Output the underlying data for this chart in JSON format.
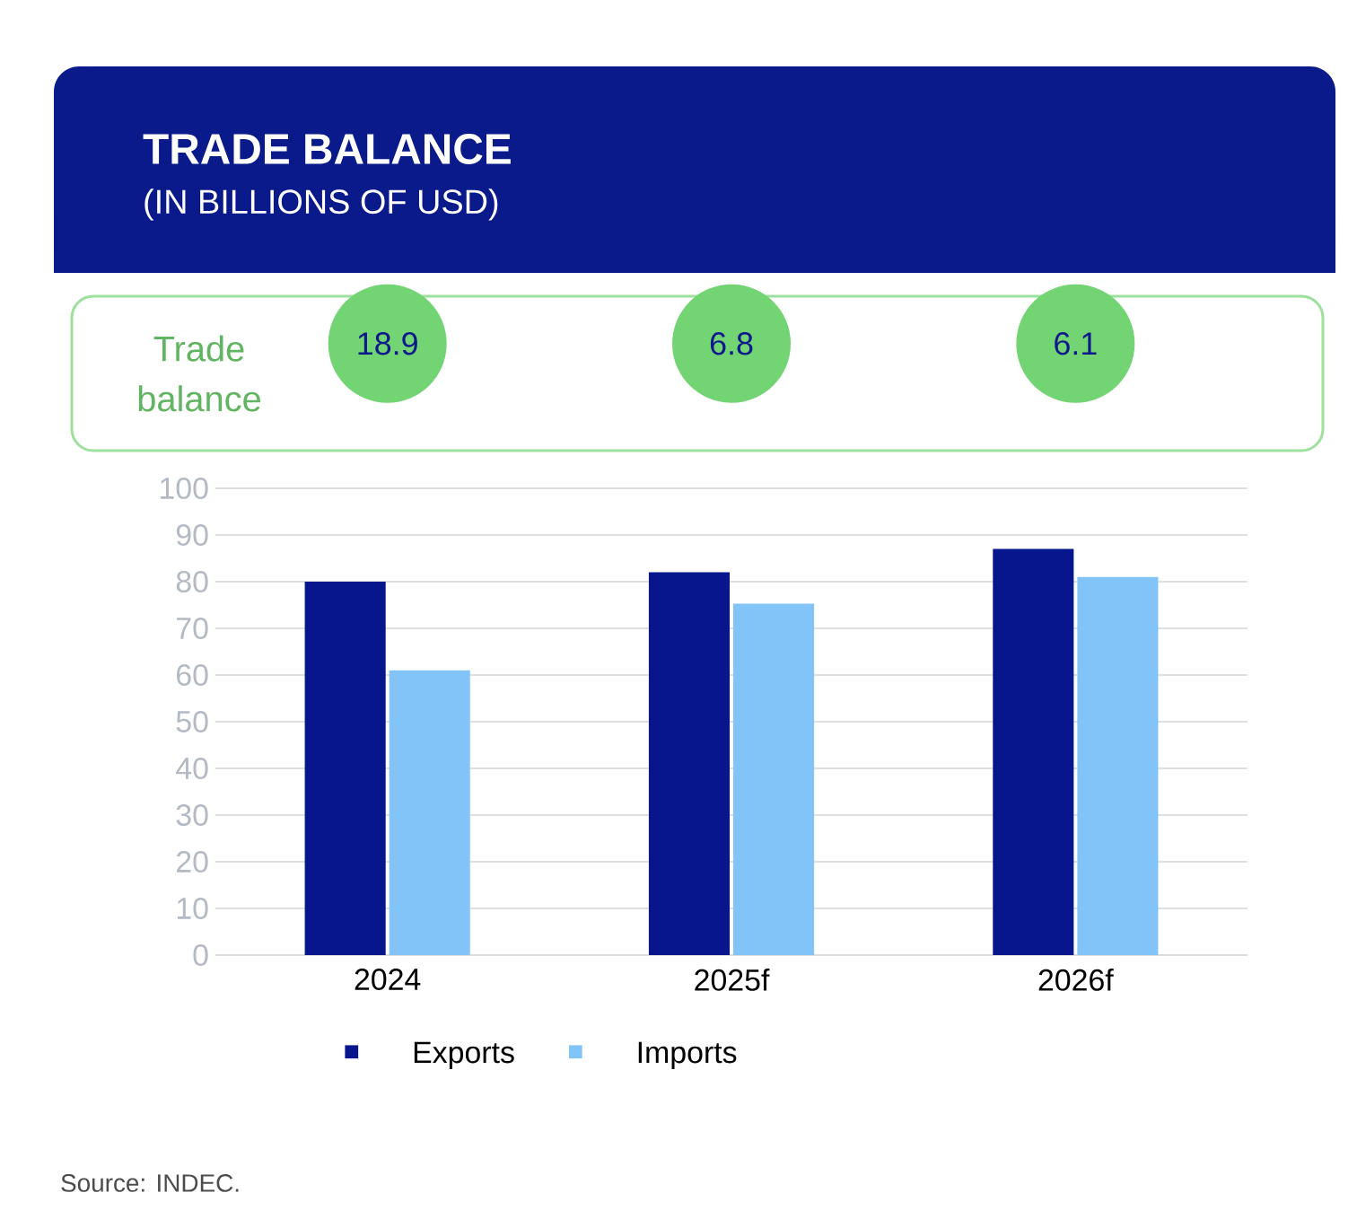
{
  "chart_data": {
    "type": "bar",
    "title": "TRADE BALANCE",
    "subtitle": "(IN BILLIONS OF USD)",
    "categories": [
      "2024",
      "2025f",
      "2026f"
    ],
    "series": [
      {
        "name": "Exports",
        "color": "#07168c",
        "values": [
          80,
          82,
          87
        ]
      },
      {
        "name": "Imports",
        "color": "#82c4f8",
        "values": [
          61,
          75.3,
          81
        ]
      }
    ],
    "ylim": [
      0,
      100
    ],
    "yticks": [
      0,
      10,
      20,
      30,
      40,
      50,
      60,
      70,
      80,
      90,
      100
    ],
    "grid": "y",
    "legend": "bottom",
    "annotations": [
      "Trade balance",
      "18.9",
      "6.8",
      "6.1",
      "Source: INDEC."
    ]
  }
}
